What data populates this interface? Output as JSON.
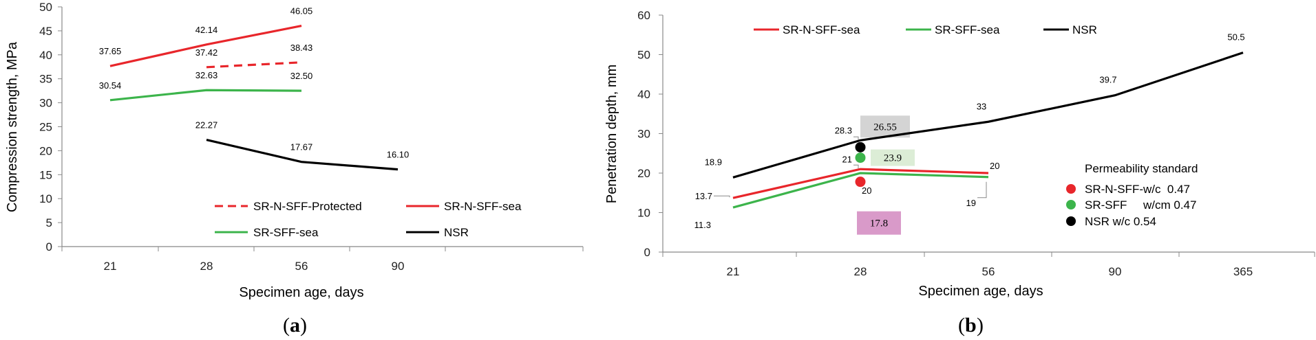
{
  "chart_data": [
    {
      "type": "line",
      "panel_label": "a",
      "xlabel": "Specimen age, days",
      "ylabel": "Compression strength, MPa",
      "categories": [
        "21",
        "28",
        "56",
        "90"
      ],
      "ylim": [
        0,
        50
      ],
      "yticks": [
        "0",
        "5",
        "10",
        "15",
        "20",
        "25",
        "30",
        "35",
        "40",
        "45",
        "50"
      ],
      "legend_position": "bottom-right",
      "series": [
        {
          "name": "SR-N-SFF-Protected",
          "color": "#e8262b",
          "dashed": true,
          "x": [
            "28",
            "56"
          ],
          "values": [
            37.42,
            38.43
          ],
          "labels": [
            "37.42",
            "38.43"
          ]
        },
        {
          "name": "SR-N-SFF-sea",
          "color": "#e8262b",
          "dashed": false,
          "x": [
            "21",
            "28",
            "56"
          ],
          "values": [
            37.65,
            42.14,
            46.05
          ],
          "labels": [
            "37.65",
            "42.14",
            "46.05"
          ]
        },
        {
          "name": "SR-SFF-sea",
          "color": "#3cb44b",
          "dashed": false,
          "x": [
            "21",
            "28",
            "56"
          ],
          "values": [
            30.54,
            32.63,
            32.5
          ],
          "labels": [
            "30.54",
            "32.63",
            "32.50"
          ]
        },
        {
          "name": "NSR",
          "color": "#000000",
          "dashed": false,
          "x": [
            "28",
            "56",
            "90"
          ],
          "values": [
            22.27,
            17.67,
            16.1
          ],
          "labels": [
            "22.27",
            "17.67",
            "16.10"
          ]
        }
      ]
    },
    {
      "type": "line",
      "panel_label": "b",
      "xlabel": "Specimen age, days",
      "ylabel": "Penetration depth, mm",
      "categories": [
        "21",
        "28",
        "56",
        "90",
        "365"
      ],
      "ylim": [
        0,
        60
      ],
      "yticks": [
        "0",
        "10",
        "20",
        "30",
        "40",
        "50",
        "60"
      ],
      "legend_position": "top-left",
      "series": [
        {
          "name": "SR-N-SFF-sea",
          "color": "#e8262b",
          "x": [
            "21",
            "28",
            "56"
          ],
          "values": [
            13.7,
            21,
            20
          ],
          "labels": [
            "13.7",
            "21",
            "20"
          ]
        },
        {
          "name": "SR-SFF-sea",
          "color": "#3cb44b",
          "x": [
            "21",
            "28",
            "56"
          ],
          "values": [
            11.3,
            20,
            19
          ],
          "labels": [
            "11.3",
            "20",
            "19"
          ]
        },
        {
          "name": "NSR",
          "color": "#000000",
          "x": [
            "21",
            "28",
            "56",
            "90",
            "365"
          ],
          "values": [
            18.9,
            28.3,
            33,
            39.7,
            50.5
          ],
          "labels": [
            "18.9",
            "28.3",
            "33",
            "39.7",
            "50.5"
          ]
        }
      ],
      "permeability_standard": {
        "title": "Permeability standard",
        "points": [
          {
            "name": "SR-N-SFF-w/c  0.47",
            "color": "#e8262b",
            "x": "28",
            "value": 17.8,
            "label": "17.8",
            "box_color": "#d99ac9"
          },
          {
            "name": "SR-SFF     w/cm 0.47",
            "color": "#3cb44b",
            "x": "28",
            "value": 23.9,
            "label": "23.9",
            "box_color": "#dcedd6"
          },
          {
            "name": "NSR w/c 0.54",
            "color": "#000000",
            "x": "28",
            "value": 26.55,
            "label": "26.55",
            "box_color": "#d4d4d4"
          }
        ]
      }
    }
  ]
}
